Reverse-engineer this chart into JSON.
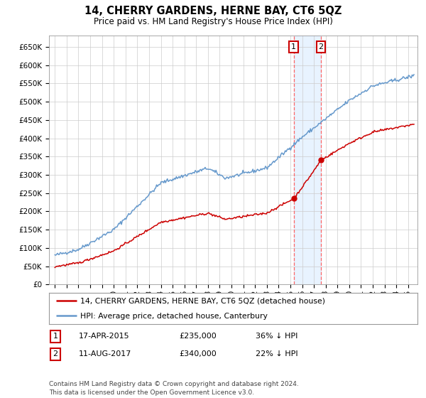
{
  "title": "14, CHERRY GARDENS, HERNE BAY, CT6 5QZ",
  "subtitle": "Price paid vs. HM Land Registry's House Price Index (HPI)",
  "legend_line1": "14, CHERRY GARDENS, HERNE BAY, CT6 5QZ (detached house)",
  "legend_line2": "HPI: Average price, detached house, Canterbury",
  "annotation1": {
    "label": "1",
    "date": "17-APR-2015",
    "price": "£235,000",
    "note": "36% ↓ HPI"
  },
  "annotation2": {
    "label": "2",
    "date": "11-AUG-2017",
    "price": "£340,000",
    "note": "22% ↓ HPI"
  },
  "footer": "Contains HM Land Registry data © Crown copyright and database right 2024.\nThis data is licensed under the Open Government Licence v3.0.",
  "hpi_color": "#6699cc",
  "price_color": "#cc0000",
  "vline_color": "#ff6666",
  "shade_color": "#ddeeff",
  "ylim": [
    0,
    680000
  ],
  "yticks": [
    0,
    50000,
    100000,
    150000,
    200000,
    250000,
    300000,
    350000,
    400000,
    450000,
    500000,
    550000,
    600000,
    650000
  ],
  "background_color": "#ffffff",
  "grid_color": "#cccccc",
  "t_sale1": 2015.29,
  "t_sale2": 2017.6,
  "sale1_price": 235000,
  "sale2_price": 340000
}
